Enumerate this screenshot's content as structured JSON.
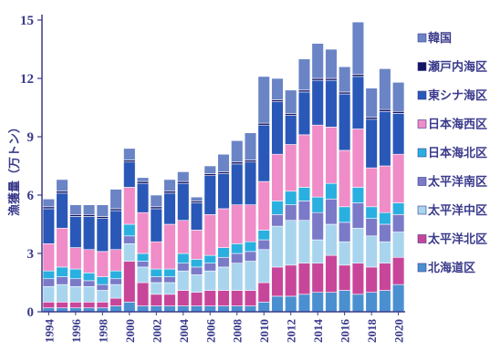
{
  "chart_data": {
    "type": "bar",
    "stacked": true,
    "ylabel": "漁獲量（万トン）",
    "ylim": [
      0,
      15
    ],
    "yticks": [
      0,
      3,
      6,
      9,
      12,
      15
    ],
    "x": [
      1994,
      1995,
      1996,
      1997,
      1998,
      1999,
      2000,
      2001,
      2002,
      2003,
      2004,
      2005,
      2006,
      2007,
      2008,
      2009,
      2010,
      2011,
      2012,
      2013,
      2014,
      2015,
      2016,
      2017,
      2018,
      2019,
      2020
    ],
    "xtick_labels": [
      "1994",
      "1996",
      "1998",
      "2000",
      "2002",
      "2004",
      "2006",
      "2008",
      "2010",
      "2012",
      "2014",
      "2016",
      "2018",
      "2020"
    ],
    "series": [
      {
        "name": "北海道区",
        "color": "#4a90d0",
        "values": [
          0.2,
          0.2,
          0.2,
          0.2,
          0.2,
          0.3,
          0.5,
          0.3,
          0.3,
          0.3,
          0.3,
          0.3,
          0.3,
          0.3,
          0.3,
          0.3,
          0.5,
          0.8,
          0.8,
          0.9,
          1.0,
          1.0,
          1.1,
          0.9,
          1.0,
          1.1,
          1.4
        ]
      },
      {
        "name": "太平洋北区",
        "color": "#c8469a",
        "values": [
          0.3,
          0.3,
          0.3,
          0.3,
          0.3,
          0.4,
          2.1,
          1.2,
          0.6,
          0.6,
          0.8,
          0.7,
          0.8,
          0.8,
          0.8,
          0.8,
          1.0,
          1.5,
          1.6,
          1.6,
          1.5,
          1.9,
          1.3,
          1.6,
          1.3,
          1.4,
          1.4
        ]
      },
      {
        "name": "太平洋中区",
        "color": "#a8d4ee",
        "values": [
          0.8,
          0.9,
          0.8,
          0.8,
          0.6,
          0.7,
          0.9,
          0.8,
          0.6,
          0.6,
          1.0,
          0.9,
          1.0,
          1.2,
          1.4,
          1.5,
          1.7,
          2.1,
          2.3,
          2.2,
          1.2,
          1.6,
          1.2,
          1.8,
          1.6,
          1.1,
          1.3
        ]
      },
      {
        "name": "太平洋南区",
        "color": "#7a7ac8",
        "values": [
          0.4,
          0.4,
          0.4,
          0.3,
          0.3,
          0.3,
          0.4,
          0.3,
          0.3,
          0.3,
          0.4,
          0.4,
          0.4,
          0.5,
          0.5,
          0.5,
          0.5,
          0.6,
          0.8,
          1.0,
          1.4,
          1.3,
          1.0,
          1.3,
          0.9,
          0.9,
          0.9
        ]
      },
      {
        "name": "日本海北区",
        "color": "#2ab0e0",
        "values": [
          0.4,
          0.5,
          0.5,
          0.4,
          0.4,
          0.4,
          0.6,
          0.4,
          0.4,
          0.4,
          0.5,
          0.4,
          0.4,
          0.5,
          0.5,
          0.5,
          0.5,
          0.7,
          0.7,
          0.7,
          0.8,
          0.8,
          0.8,
          0.8,
          0.6,
          0.6,
          0.6
        ]
      },
      {
        "name": "日本海西区",
        "color": "#f08cc8",
        "values": [
          1.4,
          2.0,
          1.1,
          1.2,
          1.3,
          1.1,
          1.9,
          2.1,
          1.4,
          2.3,
          1.7,
          1.5,
          2.1,
          2.0,
          2.0,
          1.9,
          2.5,
          2.4,
          2.4,
          2.7,
          3.7,
          2.9,
          2.9,
          3.0,
          2.0,
          2.4,
          2.5
        ]
      },
      {
        "name": "東シナ海区",
        "color": "#2a58b8",
        "values": [
          1.8,
          1.8,
          1.6,
          1.7,
          1.7,
          2.0,
          1.3,
          1.5,
          1.7,
          1.6,
          1.9,
          1.4,
          2.0,
          1.8,
          2.1,
          2.2,
          2.9,
          2.7,
          1.5,
          2.2,
          2.3,
          2.4,
          2.9,
          2.7,
          2.5,
          2.8,
          2.1
        ]
      },
      {
        "name": "瀬戸内海区",
        "color": "#141464",
        "values": [
          0.1,
          0.1,
          0.1,
          0.1,
          0.1,
          0.1,
          0.1,
          0.1,
          0.1,
          0.1,
          0.1,
          0.1,
          0.1,
          0.1,
          0.1,
          0.1,
          0.1,
          0.1,
          0.1,
          0.1,
          0.1,
          0.1,
          0.1,
          0.1,
          0.1,
          0.1,
          0.1
        ]
      },
      {
        "name": "韓国",
        "color": "#6a84c6",
        "values": [
          0.4,
          0.6,
          0.5,
          0.5,
          0.6,
          1.0,
          0.6,
          0.2,
          0.6,
          0.6,
          0.5,
          0.2,
          0.4,
          0.9,
          1.1,
          1.4,
          2.4,
          1.1,
          1.2,
          1.6,
          1.8,
          1.5,
          1.3,
          2.7,
          1.5,
          2.1,
          1.5
        ]
      }
    ],
    "legend_position": "right",
    "grid": false
  }
}
